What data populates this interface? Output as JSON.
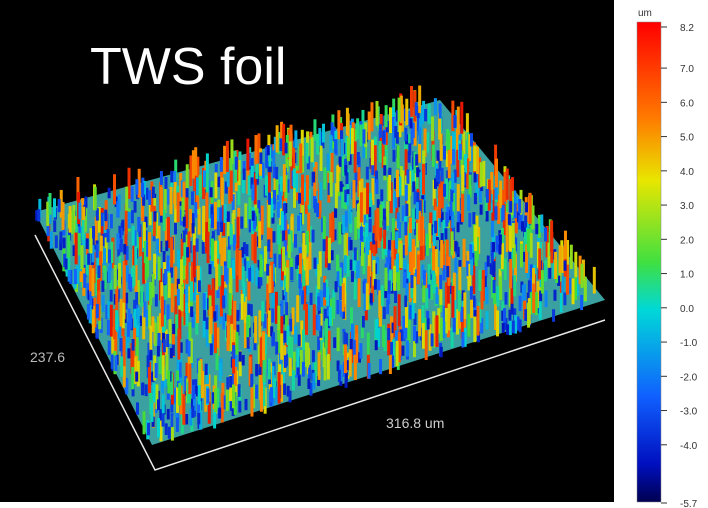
{
  "title": "TWS foil",
  "surface": {
    "y_extent_label": "237.6",
    "x_extent_label": "316.8 um"
  },
  "colorbar": {
    "unit": "um",
    "range": [
      -5.7,
      8.2
    ],
    "ticks": [
      {
        "value": 8.2,
        "label": "8.2"
      },
      {
        "value": 7,
        "label": "7.0"
      },
      {
        "value": 6,
        "label": "6.0"
      },
      {
        "value": 5,
        "label": "5.0"
      },
      {
        "value": 4,
        "label": "4.0"
      },
      {
        "value": 3,
        "label": "3.0"
      },
      {
        "value": 2,
        "label": "2.0"
      },
      {
        "value": 1,
        "label": "1.0"
      },
      {
        "value": 0,
        "label": "0.0"
      },
      {
        "value": -1,
        "label": "-1.0"
      },
      {
        "value": -2,
        "label": "-2.0"
      },
      {
        "value": -3,
        "label": "-3.0"
      },
      {
        "value": -4,
        "label": "-4.0"
      },
      {
        "value": -5.7,
        "label": "-5.7"
      }
    ]
  }
}
